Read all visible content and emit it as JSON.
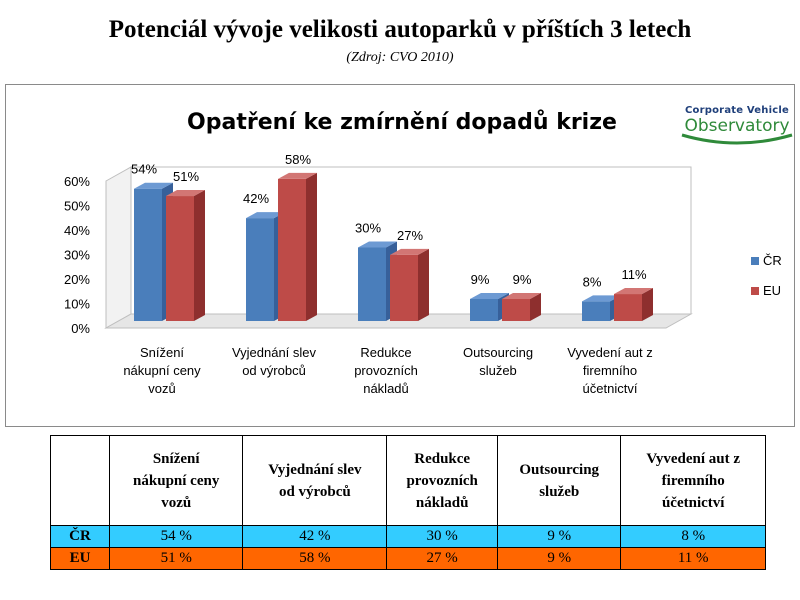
{
  "header": {
    "title": "Potenciál vývoje velikosti autoparků v příštích 3 letech",
    "source": "(Zdroj: CVO 2010)"
  },
  "logo": {
    "line1": "Corporate Vehicle",
    "line2": "Observatory"
  },
  "colors": {
    "cr": "#4a7ebb",
    "eu": "#be4b48",
    "table_cr": "#33ccff",
    "table_eu": "#ff6600"
  },
  "chart_data": {
    "type": "bar",
    "title": "Opatření ke zmírnění dopadů krize",
    "categories": [
      [
        "Snížení",
        "nákupní ceny",
        "vozů"
      ],
      [
        "Vyjednání slev",
        "od výrobců"
      ],
      [
        "Redukce",
        "provozních",
        "nákladů"
      ],
      [
        "Outsourcing",
        "služeb"
      ],
      [
        "Vyvedení aut z",
        "firemního",
        "účetnictví"
      ]
    ],
    "series": [
      {
        "name": "ČR",
        "values": [
          54,
          42,
          30,
          9,
          8
        ],
        "labels": [
          "54%",
          "42%",
          "30%",
          "9%",
          "8%"
        ]
      },
      {
        "name": "EU",
        "values": [
          51,
          58,
          27,
          9,
          11
        ],
        "labels": [
          "51%",
          "58%",
          "27%",
          "9%",
          "11%"
        ]
      }
    ],
    "yticks": [
      "0%",
      "10%",
      "20%",
      "30%",
      "40%",
      "50%",
      "60%"
    ],
    "ylim": [
      0,
      60
    ],
    "legend": "right",
    "grid": false
  },
  "table": {
    "headers": [
      [
        "Snížení",
        "nákupní ceny",
        "vozů"
      ],
      [
        "Vyjednání slev",
        "od výrobců"
      ],
      [
        "Redukce",
        "provozních",
        "nákladů"
      ],
      [
        "Outsourcing",
        "služeb"
      ],
      [
        "Vyvedení aut z",
        "firemního",
        "účetnictví"
      ]
    ],
    "rows": [
      {
        "label": "ČR",
        "cells": [
          "54 %",
          "42 %",
          "30 %",
          "9 %",
          "8 %"
        ]
      },
      {
        "label": "EU",
        "cells": [
          "51 %",
          "58 %",
          "27 %",
          "9 %",
          "11 %"
        ]
      }
    ]
  }
}
